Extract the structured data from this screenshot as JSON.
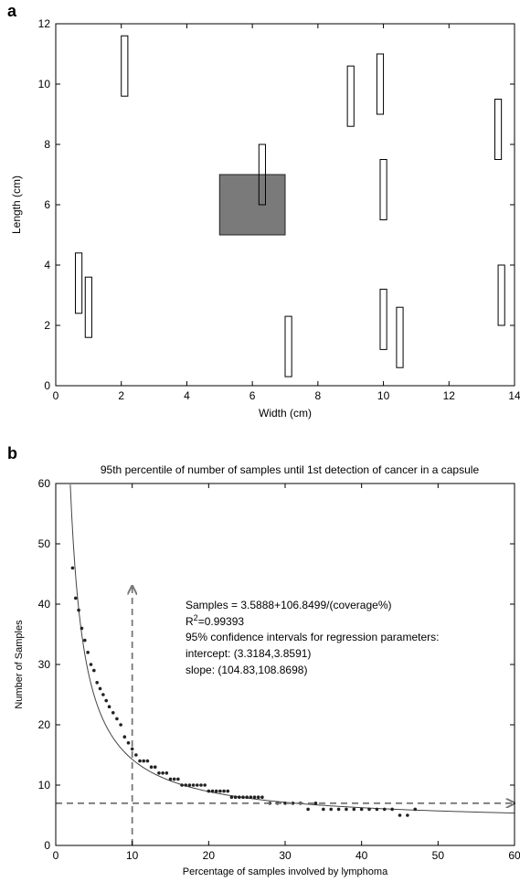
{
  "chart_data": [
    {
      "panel_label": "a",
      "type": "scatter",
      "xlabel": "Width (cm)",
      "ylabel": "Length (cm)",
      "xlim": [
        0,
        14
      ],
      "ylim": [
        0,
        12
      ],
      "xticks": [
        "0",
        "2",
        "4",
        "6",
        "8",
        "10",
        "12",
        "14"
      ],
      "yticks": [
        "0",
        "2",
        "4",
        "6",
        "8",
        "10",
        "12"
      ],
      "lesion": {
        "x": [
          5,
          7
        ],
        "y": [
          5,
          7
        ],
        "color": "#7a7a7a"
      },
      "capsules": [
        {
          "x": [
            2.0,
            2.2
          ],
          "y": [
            9.6,
            11.6
          ]
        },
        {
          "x": [
            6.2,
            6.4
          ],
          "y": [
            6.0,
            8.0
          ]
        },
        {
          "x": [
            8.9,
            9.1
          ],
          "y": [
            8.6,
            10.6
          ]
        },
        {
          "x": [
            9.8,
            10.0
          ],
          "y": [
            9.0,
            11.0
          ]
        },
        {
          "x": [
            13.4,
            13.6
          ],
          "y": [
            7.5,
            9.5
          ]
        },
        {
          "x": [
            9.9,
            10.1
          ],
          "y": [
            5.5,
            7.5
          ]
        },
        {
          "x": [
            0.6,
            0.8
          ],
          "y": [
            2.4,
            4.4
          ]
        },
        {
          "x": [
            0.9,
            1.1
          ],
          "y": [
            1.6,
            3.6
          ]
        },
        {
          "x": [
            7.0,
            7.2
          ],
          "y": [
            0.3,
            2.3
          ]
        },
        {
          "x": [
            9.9,
            10.1
          ],
          "y": [
            1.2,
            3.2
          ]
        },
        {
          "x": [
            10.4,
            10.6
          ],
          "y": [
            0.6,
            2.6
          ]
        },
        {
          "x": [
            13.5,
            13.7
          ],
          "y": [
            2.0,
            4.0
          ]
        }
      ]
    },
    {
      "panel_label": "b",
      "type": "scatter",
      "title": "95th percentile of number of samples until 1st detection of cancer in a capsule",
      "xlabel": "Percentage of samples involved by lymphoma",
      "ylabel": "Number of Samples",
      "xlim": [
        0,
        60
      ],
      "ylim": [
        0,
        60
      ],
      "xticks": [
        "0",
        "10",
        "20",
        "30",
        "40",
        "50",
        "60"
      ],
      "yticks": [
        "0",
        "10",
        "20",
        "30",
        "40",
        "50",
        "60"
      ],
      "fit": {
        "intercept": 3.5888,
        "slope": 106.8499,
        "x_start": 1.9,
        "x_end": 60
      },
      "points": {
        "x": [
          2.2,
          2.6,
          3.0,
          3.4,
          3.8,
          4.2,
          4.6,
          5.0,
          5.4,
          5.8,
          6.2,
          6.6,
          7.0,
          7.5,
          8.0,
          8.5,
          9.0,
          9.5,
          10.0,
          10.5,
          11.0,
          11.5,
          12.0,
          12.5,
          13.0,
          13.5,
          14.0,
          14.5,
          15.0,
          15.5,
          16.0,
          16.5,
          17.0,
          17.5,
          18.0,
          18.5,
          19.0,
          19.5,
          20.0,
          20.5,
          21.0,
          21.5,
          22.0,
          22.5,
          23.0,
          23.5,
          24.0,
          24.5,
          25.0,
          25.5,
          26.0,
          26.5,
          27.0,
          28.0,
          29.0,
          30.0,
          31.0,
          32.0,
          33.0,
          34.0,
          35.0,
          36.0,
          37.0,
          38.0,
          39.0,
          40.0,
          41.0,
          42.0,
          43.0,
          44.0,
          45.0,
          46.0,
          47.0
        ],
        "y": [
          46,
          41,
          39,
          36,
          34,
          32,
          30,
          29,
          27,
          26,
          25,
          24,
          23,
          22,
          21,
          20,
          18,
          17,
          16,
          15,
          14,
          14,
          14,
          13,
          13,
          12,
          12,
          12,
          11,
          11,
          11,
          10,
          10,
          10,
          10,
          10,
          10,
          10,
          9,
          9,
          9,
          9,
          9,
          9,
          8,
          8,
          8,
          8,
          8,
          8,
          8,
          8,
          8,
          7,
          7,
          7,
          7,
          7,
          6,
          7,
          6,
          6,
          6,
          6,
          6,
          6,
          6,
          6,
          6,
          6,
          5,
          5,
          6
        ]
      },
      "reference_lines": [
        {
          "orientation": "vertical",
          "x": 10,
          "y_end": 43
        },
        {
          "orientation": "horizontal",
          "y": 7,
          "x_end": 60
        }
      ],
      "annotation": [
        "Samples = 3.5888+106.8499/(coverage%)",
        "R2=0.99393",
        "95% confidence intervals   for regression parameters:",
        "intercept: (3.3184,3.8591)",
        "slope: (104.83,108.8698)"
      ],
      "grid": false
    }
  ]
}
